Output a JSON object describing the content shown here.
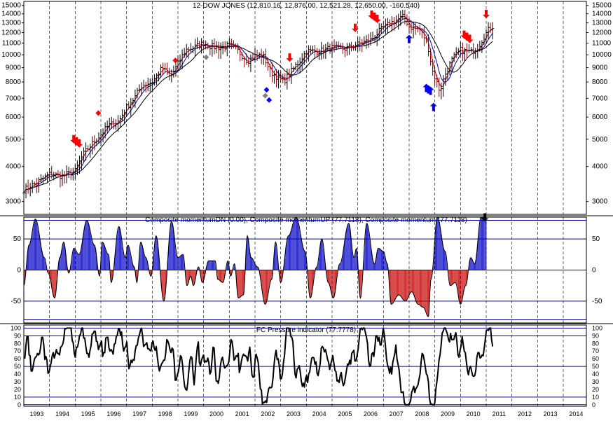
{
  "chart_data": [
    {
      "type": "line",
      "title": "12-DOW JONES (12,810.16, 12,876.00, 12,521.28, 12,650.00, -160.540)",
      "scale": "log",
      "ylim": [
        2700,
        15500
      ],
      "yticks": [
        3000,
        4000,
        5000,
        6000,
        7000,
        8000,
        9000,
        10000,
        11000,
        12000,
        13000,
        14000,
        15000
      ],
      "ytick_labels": [
        "3000",
        "4000",
        "5000",
        "6000",
        "7000",
        "8000",
        "9000",
        "10000",
        "11000",
        "12000",
        "13000",
        "14000",
        "15000"
      ],
      "x_range": [
        1993.0,
        2014.9
      ],
      "x_tick_labels": [
        "1993",
        "1994",
        "1995",
        "1996",
        "1997",
        "1998",
        "1999",
        "2000",
        "2001",
        "2002",
        "2003",
        "2004",
        "2005",
        "2006",
        "2007",
        "2008",
        "2009",
        "2010",
        "2011",
        "2012",
        "2013",
        "2014"
      ],
      "price_anchors": [
        [
          1993.0,
          3300
        ],
        [
          1993.5,
          3500
        ],
        [
          1994.0,
          3750
        ],
        [
          1994.5,
          3700
        ],
        [
          1995.0,
          3850
        ],
        [
          1995.3,
          4400
        ],
        [
          1995.6,
          4750
        ],
        [
          1996.0,
          5200
        ],
        [
          1996.3,
          5600
        ],
        [
          1996.7,
          5800
        ],
        [
          1997.0,
          6500
        ],
        [
          1997.3,
          7000
        ],
        [
          1997.6,
          7800
        ],
        [
          1998.0,
          8000
        ],
        [
          1998.4,
          9000
        ],
        [
          1998.7,
          8300
        ],
        [
          1999.0,
          9300
        ],
        [
          1999.3,
          10400
        ],
        [
          1999.7,
          10700
        ],
        [
          2000.0,
          11000
        ],
        [
          2000.3,
          10700
        ],
        [
          2000.7,
          10600
        ],
        [
          2001.0,
          10800
        ],
        [
          2001.3,
          10400
        ],
        [
          2001.7,
          9500
        ],
        [
          2002.0,
          9900
        ],
        [
          2002.3,
          10000
        ],
        [
          2002.6,
          8700
        ],
        [
          2002.9,
          8300
        ],
        [
          2003.1,
          8000
        ],
        [
          2003.4,
          8700
        ],
        [
          2003.7,
          9400
        ],
        [
          2004.0,
          10300
        ],
        [
          2004.5,
          10300
        ],
        [
          2005.0,
          10600
        ],
        [
          2005.5,
          10500
        ],
        [
          2006.0,
          10900
        ],
        [
          2006.5,
          11300
        ],
        [
          2006.9,
          12300
        ],
        [
          2007.3,
          13000
        ],
        [
          2007.8,
          13700
        ],
        [
          2008.0,
          12600
        ],
        [
          2008.4,
          12300
        ],
        [
          2008.7,
          11100
        ],
        [
          2008.9,
          8800
        ],
        [
          2009.2,
          7400
        ],
        [
          2009.4,
          8500
        ],
        [
          2009.7,
          9700
        ],
        [
          2010.0,
          10400
        ],
        [
          2010.4,
          10200
        ],
        [
          2010.7,
          10700
        ],
        [
          2010.9,
          11600
        ],
        [
          2011.1,
          12300
        ],
        [
          2011.25,
          12650
        ]
      ],
      "moving_averages": [
        {
          "color": "#d00000",
          "period": "short"
        },
        {
          "color": "#0000d0",
          "period": "medium"
        },
        {
          "color": "#000000",
          "period": "long"
        }
      ],
      "signals": [
        {
          "x": 1995.05,
          "y": 4750,
          "kind": "sell-arrow-cluster",
          "color": "#ff0000"
        },
        {
          "x": 1995.9,
          "y": 6200,
          "kind": "diamond",
          "color": "#ff0000"
        },
        {
          "x": 1998.9,
          "y": 9550,
          "kind": "diamond",
          "color": "#ff0000"
        },
        {
          "x": 2000.1,
          "y": 9800,
          "kind": "diamond",
          "color": "#808080"
        },
        {
          "x": 2002.45,
          "y": 7500,
          "kind": "diamond",
          "color": "#0000ff"
        },
        {
          "x": 2002.55,
          "y": 6900,
          "kind": "diamond",
          "color": "#0000ff"
        },
        {
          "x": 2002.4,
          "y": 7150,
          "kind": "diamond",
          "color": "#808080"
        },
        {
          "x": 2003.35,
          "y": 9450,
          "kind": "sell-arrow",
          "color": "#ff0000"
        },
        {
          "x": 2005.9,
          "y": 12050,
          "kind": "sell-arrow",
          "color": "#ff0000"
        },
        {
          "x": 2006.65,
          "y": 13200,
          "kind": "sell-arrow-cluster",
          "color": "#ff0000"
        },
        {
          "x": 2008.0,
          "y": 11800,
          "kind": "buy-arrow",
          "color": "#0000ff"
        },
        {
          "x": 2008.75,
          "y": 7800,
          "kind": "buy-arrow-cluster",
          "color": "#0000ff"
        },
        {
          "x": 2008.95,
          "y": 6750,
          "kind": "buy-arrow",
          "color": "#0000ff"
        },
        {
          "x": 2010.25,
          "y": 11200,
          "kind": "sell-arrow-cluster",
          "color": "#ff0000"
        },
        {
          "x": 2011.0,
          "y": 13500,
          "kind": "sell-arrow",
          "color": "#ff0000"
        }
      ]
    },
    {
      "type": "bar",
      "title": "Composite momentumDN (0.00), Composite momentumUP (77.7118), Composite momentum (77.7118)",
      "ylim": [
        -85,
        85
      ],
      "yticks": [
        -50,
        0,
        50
      ],
      "ytick_labels": [
        "-50",
        "0",
        "50"
      ],
      "hlines": [
        -80,
        -50,
        0,
        50,
        80
      ],
      "series": [
        {
          "name": "Composite momentumUP",
          "color": "#0000c8"
        },
        {
          "name": "Composite momentumDN",
          "color": "#c80000"
        }
      ],
      "anchors": [
        [
          1993.0,
          -25
        ],
        [
          1993.2,
          40
        ],
        [
          1993.45,
          82
        ],
        [
          1993.8,
          20
        ],
        [
          1993.95,
          -5
        ],
        [
          1994.2,
          -45
        ],
        [
          1994.4,
          20
        ],
        [
          1994.55,
          45
        ],
        [
          1994.75,
          -5
        ],
        [
          1994.95,
          35
        ],
        [
          1995.15,
          25
        ],
        [
          1995.45,
          80
        ],
        [
          1995.75,
          40
        ],
        [
          1995.95,
          -10
        ],
        [
          1996.05,
          45
        ],
        [
          1996.3,
          25
        ],
        [
          1996.4,
          -20
        ],
        [
          1996.7,
          70
        ],
        [
          1996.95,
          20
        ],
        [
          1997.05,
          40
        ],
        [
          1997.3,
          5
        ],
        [
          1997.4,
          -20
        ],
        [
          1997.55,
          45
        ],
        [
          1997.75,
          20
        ],
        [
          1997.95,
          -10
        ],
        [
          1998.15,
          55
        ],
        [
          1998.45,
          -50
        ],
        [
          1998.75,
          78
        ],
        [
          1999.0,
          20
        ],
        [
          1999.2,
          25
        ],
        [
          1999.35,
          -25
        ],
        [
          1999.5,
          -10
        ],
        [
          1999.6,
          -25
        ],
        [
          1999.8,
          5
        ],
        [
          1999.95,
          -20
        ],
        [
          2000.2,
          15
        ],
        [
          2000.45,
          15
        ],
        [
          2000.55,
          -15
        ],
        [
          2000.75,
          -20
        ],
        [
          2000.95,
          15
        ],
        [
          2001.05,
          -10
        ],
        [
          2001.2,
          10
        ],
        [
          2001.35,
          -45
        ],
        [
          2001.55,
          -40
        ],
        [
          2001.7,
          55
        ],
        [
          2001.85,
          20
        ],
        [
          2002.1,
          5
        ],
        [
          2002.4,
          -55
        ],
        [
          2002.65,
          -15
        ],
        [
          2002.8,
          45
        ],
        [
          2003.0,
          -20
        ],
        [
          2003.3,
          55
        ],
        [
          2003.6,
          85
        ],
        [
          2003.95,
          30
        ],
        [
          2004.15,
          -45
        ],
        [
          2004.4,
          5
        ],
        [
          2004.6,
          50
        ],
        [
          2004.85,
          -20
        ],
        [
          2005.05,
          -45
        ],
        [
          2005.3,
          10
        ],
        [
          2005.65,
          75
        ],
        [
          2005.85,
          20
        ],
        [
          2005.95,
          35
        ],
        [
          2006.1,
          -45
        ],
        [
          2006.35,
          75
        ],
        [
          2006.65,
          10
        ],
        [
          2006.8,
          35
        ],
        [
          2007.0,
          30
        ],
        [
          2007.15,
          10
        ],
        [
          2007.3,
          -55
        ],
        [
          2007.6,
          -40
        ],
        [
          2007.85,
          -50
        ],
        [
          2008.1,
          -35
        ],
        [
          2008.35,
          -55
        ],
        [
          2008.55,
          -60
        ],
        [
          2008.75,
          -75
        ],
        [
          2008.85,
          -15
        ],
        [
          2009.1,
          85
        ],
        [
          2009.4,
          30
        ],
        [
          2009.6,
          -25
        ],
        [
          2009.8,
          -20
        ],
        [
          2010.0,
          -55
        ],
        [
          2010.2,
          -25
        ],
        [
          2010.4,
          20
        ],
        [
          2010.55,
          10
        ],
        [
          2010.8,
          85
        ],
        [
          2011.0,
          82
        ]
      ],
      "marker": {
        "x": 2010.95,
        "kind": "arrow-down",
        "color": "#000000"
      }
    },
    {
      "type": "line",
      "title": "FC Pressure indicator (77.7778)",
      "ylim": [
        -2,
        104
      ],
      "yticks": [
        0,
        10,
        20,
        30,
        40,
        50,
        60,
        70,
        80,
        90,
        100
      ],
      "ytick_labels": [
        "0",
        "10",
        "20",
        "30",
        "40",
        "50",
        "60",
        "70",
        "80",
        "90",
        "100"
      ],
      "hlines": [
        0,
        10,
        50,
        90,
        100
      ],
      "series": [
        {
          "name": "FC Pressure indicator",
          "color": "#000000"
        }
      ],
      "x_tick_labels": [
        "1993",
        "1994",
        "1995",
        "1996",
        "1997",
        "1998",
        "1999",
        "2000",
        "2001",
        "2002",
        "2003",
        "2004",
        "2005",
        "2006",
        "2007",
        "2008",
        "2009",
        "2010",
        "2011",
        "2012",
        "2013",
        "2014"
      ],
      "values": [
        61,
        61,
        77,
        89,
        89,
        65,
        64,
        44,
        44,
        51,
        59,
        62,
        63,
        67,
        65,
        67,
        75,
        88,
        88,
        78,
        59,
        63,
        58,
        41,
        42,
        49,
        55,
        64,
        68,
        61,
        66,
        72,
        67,
        67,
        65,
        75,
        76,
        79,
        85,
        99,
        99,
        100,
        100,
        100,
        100,
        100,
        84,
        81,
        67,
        62,
        75,
        75,
        81,
        90,
        92,
        100,
        100,
        87,
        87,
        76,
        67,
        67,
        62,
        71,
        77,
        92,
        93,
        96,
        96,
        83,
        82,
        72,
        76,
        80,
        83,
        63,
        68,
        68,
        87,
        88,
        88,
        74,
        70,
        72,
        70,
        66,
        79,
        80,
        89,
        91,
        99,
        99,
        91,
        95,
        79,
        70,
        74,
        76,
        82,
        63,
        47,
        51,
        58,
        55,
        59,
        58,
        71,
        77,
        78,
        87,
        91,
        97,
        100,
        90,
        76,
        78,
        79,
        81,
        73,
        73,
        71,
        70,
        81,
        83,
        74,
        71,
        76,
        63,
        52,
        44,
        49,
        53,
        55,
        58,
        58,
        68,
        85,
        83,
        79,
        72,
        68,
        74,
        72,
        58,
        32,
        32,
        39,
        43,
        52,
        64,
        62,
        52,
        35,
        24,
        20,
        19,
        29,
        45,
        58,
        63,
        61,
        41,
        26,
        43,
        61,
        75,
        82,
        55,
        51,
        58,
        62,
        65,
        55,
        57,
        56,
        61,
        55,
        40,
        43,
        58,
        75,
        74,
        51,
        31,
        31,
        28,
        36,
        51,
        59,
        62,
        54,
        48,
        49,
        51,
        52,
        56,
        69,
        85,
        83,
        73,
        58,
        60,
        64,
        63,
        67,
        42,
        48,
        57,
        63,
        66,
        64,
        64,
        62,
        57,
        68,
        75,
        58,
        39,
        36,
        36,
        59,
        66,
        61,
        55,
        38,
        21,
        19,
        1,
        3,
        3,
        5,
        3,
        14,
        21,
        23,
        22,
        23,
        34,
        51,
        64,
        71,
        59,
        60,
        51,
        34,
        34,
        40,
        55,
        64,
        83,
        100,
        100,
        100,
        99,
        89,
        88,
        82,
        59,
        40,
        35,
        46,
        48,
        51,
        43,
        31,
        24,
        28,
        23,
        34,
        38,
        29,
        40,
        43,
        53,
        61,
        62,
        61,
        53,
        56,
        41,
        38,
        46,
        54,
        74,
        76,
        74,
        69,
        72,
        66,
        59,
        55,
        46,
        53,
        58,
        64,
        54,
        45,
        43,
        31,
        32,
        29,
        38,
        42,
        31,
        25,
        28,
        36,
        45,
        53,
        52,
        58,
        53,
        67,
        69,
        71,
        57,
        57,
        64,
        72,
        85,
        99,
        100,
        98,
        100,
        100,
        94,
        88,
        80,
        58,
        50,
        51,
        66,
        68,
        63,
        75,
        90,
        90,
        83,
        88,
        78,
        78,
        89,
        100,
        91,
        78,
        61,
        52,
        48,
        41,
        49,
        40,
        55,
        61,
        67,
        78,
        60,
        53,
        46,
        32,
        16,
        16,
        17,
        3,
        0,
        0,
        0,
        0,
        2,
        5,
        16,
        20,
        24,
        16,
        21,
        23,
        26,
        33,
        40,
        56,
        67,
        65,
        58,
        49,
        40,
        38,
        29,
        8,
        1,
        1,
        0,
        0,
        2,
        20,
        30,
        42,
        58,
        65,
        77,
        93,
        96,
        100,
        100,
        96,
        92,
        85,
        82,
        93,
        85,
        85,
        85,
        90,
        94,
        82,
        65,
        62,
        71,
        77,
        89,
        79,
        70,
        68,
        56,
        45,
        39,
        48,
        50,
        44,
        38,
        37,
        38,
        45,
        62,
        68,
        68,
        61,
        62,
        65,
        64,
        74,
        85,
        97,
        98,
        97,
        100,
        100,
        85,
        76
      ]
    }
  ]
}
